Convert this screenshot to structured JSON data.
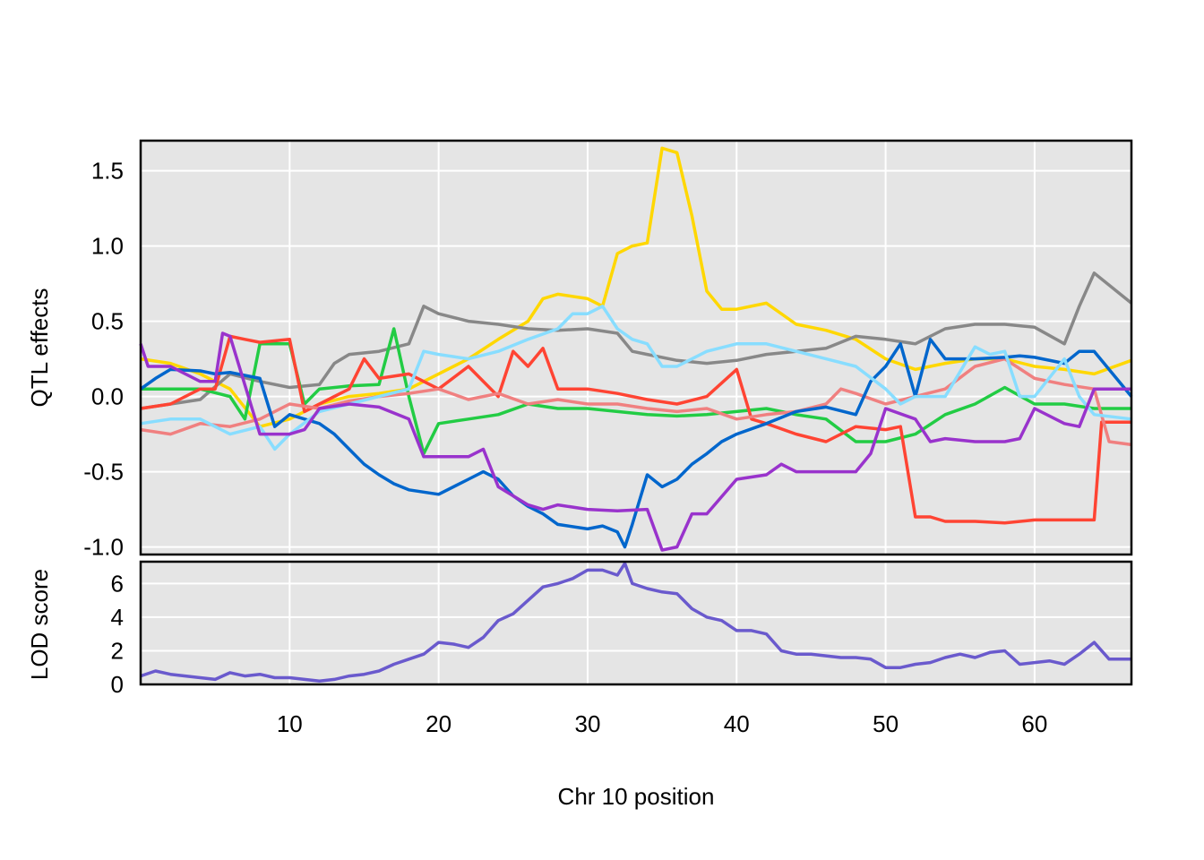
{
  "chart_data": [
    {
      "type": "line",
      "panel": "effects",
      "title": "",
      "xlabel": "",
      "ylabel": "QTL effects",
      "xlim": [
        0,
        66.5
      ],
      "ylim": [
        -1.05,
        1.7
      ],
      "xticks": [
        10,
        20,
        30,
        40,
        50,
        60
      ],
      "yticks": [
        -1.0,
        -0.5,
        0.0,
        0.5,
        1.0,
        1.5
      ],
      "ytick_labels": [
        "-1.0",
        "-0.5",
        "0.0",
        "0.5",
        "1.0",
        "1.5"
      ],
      "grid": true,
      "background": "#e5e5e5",
      "series": [
        {
          "color": "#ffd700",
          "x": [
            0,
            2,
            4,
            6,
            8,
            10,
            12,
            14,
            16,
            18,
            20,
            22,
            24,
            26,
            27,
            28,
            30,
            31,
            32,
            33,
            34,
            35,
            36,
            37,
            38,
            39,
            40,
            42,
            44,
            46,
            48,
            50,
            52,
            54,
            56,
            58,
            60,
            62,
            64,
            66.5
          ],
          "y": [
            0.25,
            0.22,
            0.15,
            0.05,
            -0.2,
            -0.15,
            -0.05,
            0.0,
            0.02,
            0.05,
            0.15,
            0.25,
            0.38,
            0.5,
            0.65,
            0.68,
            0.65,
            0.6,
            0.95,
            1.0,
            1.02,
            1.65,
            1.62,
            1.2,
            0.7,
            0.58,
            0.58,
            0.62,
            0.48,
            0.44,
            0.38,
            0.25,
            0.18,
            0.22,
            0.25,
            0.25,
            0.2,
            0.18,
            0.15,
            0.24
          ]
        },
        {
          "color": "#888888",
          "x": [
            0,
            2,
            4,
            6,
            8,
            10,
            12,
            13,
            14,
            16,
            18,
            19,
            20,
            22,
            24,
            26,
            28,
            30,
            32,
            33,
            34,
            36,
            38,
            40,
            42,
            44,
            46,
            48,
            50,
            52,
            54,
            56,
            58,
            60,
            62,
            63,
            64,
            66.5
          ],
          "y": [
            -0.08,
            -0.05,
            -0.02,
            0.15,
            0.1,
            0.06,
            0.08,
            0.22,
            0.28,
            0.3,
            0.35,
            0.6,
            0.55,
            0.5,
            0.48,
            0.45,
            0.44,
            0.45,
            0.42,
            0.3,
            0.28,
            0.24,
            0.22,
            0.24,
            0.28,
            0.3,
            0.32,
            0.4,
            0.38,
            0.35,
            0.45,
            0.48,
            0.48,
            0.46,
            0.35,
            0.6,
            0.82,
            0.62
          ]
        },
        {
          "color": "#22cc44",
          "x": [
            0,
            2,
            4,
            6,
            7,
            8,
            10,
            11,
            12,
            14,
            16,
            17,
            18,
            19,
            20,
            22,
            24,
            26,
            28,
            30,
            32,
            34,
            36,
            38,
            40,
            42,
            44,
            46,
            48,
            50,
            52,
            54,
            56,
            58,
            60,
            62,
            64,
            66.5
          ],
          "y": [
            0.05,
            0.05,
            0.05,
            0.0,
            -0.15,
            0.35,
            0.35,
            -0.05,
            0.05,
            0.07,
            0.08,
            0.45,
            0.0,
            -0.38,
            -0.18,
            -0.15,
            -0.12,
            -0.05,
            -0.08,
            -0.08,
            -0.1,
            -0.12,
            -0.13,
            -0.12,
            -0.1,
            -0.08,
            -0.12,
            -0.15,
            -0.3,
            -0.3,
            -0.25,
            -0.12,
            -0.05,
            0.06,
            -0.05,
            -0.05,
            -0.08,
            -0.08
          ]
        },
        {
          "color": "#ff4433",
          "x": [
            0,
            2,
            4,
            5,
            6,
            7,
            8,
            10,
            11,
            12,
            14,
            15,
            16,
            18,
            20,
            22,
            24,
            25,
            26,
            27,
            28,
            30,
            32,
            34,
            36,
            38,
            40,
            41,
            42,
            44,
            46,
            48,
            50,
            51,
            52,
            53,
            54,
            56,
            58,
            60,
            62,
            64,
            64.5,
            66.5
          ],
          "y": [
            -0.08,
            -0.05,
            0.05,
            0.05,
            0.4,
            0.38,
            0.36,
            0.38,
            -0.1,
            -0.05,
            0.05,
            0.25,
            0.12,
            0.15,
            0.05,
            0.2,
            0.0,
            0.3,
            0.2,
            0.32,
            0.05,
            0.05,
            0.02,
            -0.02,
            -0.05,
            0.0,
            0.18,
            -0.15,
            -0.18,
            -0.25,
            -0.3,
            -0.2,
            -0.22,
            -0.2,
            -0.8,
            -0.8,
            -0.83,
            -0.83,
            -0.84,
            -0.82,
            -0.82,
            -0.82,
            -0.17,
            -0.17
          ]
        },
        {
          "color": "#f08080",
          "x": [
            0,
            2,
            4,
            6,
            8,
            10,
            12,
            14,
            16,
            18,
            20,
            22,
            24,
            26,
            28,
            30,
            32,
            34,
            36,
            38,
            40,
            42,
            44,
            46,
            47,
            48,
            50,
            52,
            54,
            56,
            58,
            60,
            62,
            64,
            65,
            66.5
          ],
          "y": [
            -0.22,
            -0.25,
            -0.18,
            -0.2,
            -0.15,
            -0.05,
            -0.08,
            -0.03,
            0.0,
            0.02,
            0.05,
            -0.02,
            0.02,
            -0.05,
            -0.02,
            -0.05,
            -0.05,
            -0.08,
            -0.1,
            -0.08,
            -0.15,
            -0.12,
            -0.1,
            -0.05,
            0.05,
            0.02,
            -0.05,
            0.0,
            0.05,
            0.2,
            0.25,
            0.12,
            0.08,
            0.05,
            -0.3,
            -0.32
          ]
        },
        {
          "color": "#0066cc",
          "x": [
            0,
            1,
            2,
            4,
            5,
            6,
            8,
            9,
            10,
            12,
            13,
            14,
            15,
            16,
            17,
            18,
            20,
            22,
            23,
            24,
            25,
            26,
            27,
            28,
            30,
            31,
            32,
            32.5,
            33,
            34,
            35,
            36,
            37,
            38,
            39,
            40,
            42,
            44,
            46,
            48,
            49,
            50,
            51,
            52,
            53,
            54,
            56,
            58,
            59,
            60,
            62,
            63,
            64,
            66.5
          ],
          "y": [
            0.05,
            0.12,
            0.18,
            0.17,
            0.15,
            0.16,
            0.12,
            -0.2,
            -0.12,
            -0.18,
            -0.25,
            -0.35,
            -0.45,
            -0.52,
            -0.58,
            -0.62,
            -0.65,
            -0.55,
            -0.5,
            -0.55,
            -0.66,
            -0.73,
            -0.78,
            -0.85,
            -0.88,
            -0.86,
            -0.9,
            -1.0,
            -0.85,
            -0.52,
            -0.6,
            -0.55,
            -0.45,
            -0.38,
            -0.3,
            -0.25,
            -0.18,
            -0.1,
            -0.07,
            -0.12,
            0.1,
            0.2,
            0.35,
            0.0,
            0.38,
            0.25,
            0.25,
            0.26,
            0.27,
            0.26,
            0.22,
            0.3,
            0.3,
            0.0
          ]
        },
        {
          "color": "#88ddff",
          "x": [
            0,
            2,
            4,
            6,
            8,
            9,
            10,
            12,
            14,
            16,
            18,
            19,
            20,
            22,
            24,
            26,
            28,
            29,
            30,
            31,
            32,
            33,
            34,
            35,
            36,
            38,
            40,
            42,
            44,
            46,
            48,
            50,
            51,
            52,
            54,
            56,
            57,
            58,
            59,
            60,
            62,
            63,
            64,
            66.5
          ],
          "y": [
            -0.18,
            -0.15,
            -0.15,
            -0.25,
            -0.2,
            -0.35,
            -0.25,
            -0.1,
            -0.05,
            0.0,
            0.05,
            0.3,
            0.28,
            0.25,
            0.3,
            0.38,
            0.45,
            0.55,
            0.55,
            0.6,
            0.45,
            0.38,
            0.35,
            0.2,
            0.2,
            0.3,
            0.35,
            0.35,
            0.3,
            0.25,
            0.2,
            0.05,
            -0.05,
            0.0,
            0.0,
            0.33,
            0.28,
            0.3,
            0.0,
            0.0,
            0.25,
            0.0,
            -0.12,
            -0.15
          ]
        },
        {
          "color": "#9933cc",
          "x": [
            0,
            0.5,
            2,
            4,
            5,
            5.5,
            6,
            8,
            9,
            10,
            11,
            12,
            14,
            16,
            18,
            19,
            20,
            22,
            23,
            24,
            26,
            27,
            28,
            30,
            32,
            34,
            35,
            36,
            37,
            38,
            40,
            42,
            43,
            44,
            46,
            48,
            49,
            50,
            52,
            53,
            54,
            56,
            58,
            59,
            60,
            62,
            63,
            64,
            66.5
          ],
          "y": [
            0.35,
            0.2,
            0.2,
            0.1,
            0.1,
            0.42,
            0.4,
            -0.25,
            -0.25,
            -0.25,
            -0.22,
            -0.08,
            -0.05,
            -0.07,
            -0.15,
            -0.4,
            -0.4,
            -0.4,
            -0.35,
            -0.6,
            -0.72,
            -0.75,
            -0.72,
            -0.75,
            -0.76,
            -0.75,
            -1.02,
            -1.0,
            -0.78,
            -0.78,
            -0.55,
            -0.52,
            -0.45,
            -0.5,
            -0.5,
            -0.5,
            -0.38,
            -0.08,
            -0.15,
            -0.3,
            -0.28,
            -0.3,
            -0.3,
            -0.28,
            -0.08,
            -0.18,
            -0.2,
            0.05,
            0.05
          ]
        }
      ]
    },
    {
      "type": "line",
      "panel": "lod",
      "title": "",
      "xlabel": "Chr 10 position",
      "ylabel": "LOD score",
      "xlim": [
        0,
        66.5
      ],
      "ylim": [
        0,
        7.3
      ],
      "xticks": [
        10,
        20,
        30,
        40,
        50,
        60
      ],
      "yticks": [
        0,
        2,
        4,
        6
      ],
      "grid": true,
      "background": "#e5e5e5",
      "series": [
        {
          "color": "#6a5acd",
          "x": [
            0,
            1,
            2,
            3,
            4,
            5,
            6,
            7,
            8,
            9,
            10,
            11,
            12,
            13,
            14,
            15,
            16,
            17,
            18,
            19,
            20,
            21,
            22,
            23,
            24,
            25,
            26,
            27,
            28,
            29,
            30,
            31,
            32,
            32.5,
            33,
            34,
            35,
            36,
            37,
            38,
            39,
            40,
            41,
            42,
            43,
            44,
            45,
            46,
            47,
            48,
            49,
            50,
            51,
            52,
            53,
            54,
            55,
            56,
            57,
            58,
            59,
            60,
            61,
            62,
            63,
            64,
            65,
            66.5
          ],
          "y": [
            0.5,
            0.8,
            0.6,
            0.5,
            0.4,
            0.3,
            0.7,
            0.5,
            0.6,
            0.4,
            0.4,
            0.3,
            0.2,
            0.3,
            0.5,
            0.6,
            0.8,
            1.2,
            1.5,
            1.8,
            2.5,
            2.4,
            2.2,
            2.8,
            3.8,
            4.2,
            5.0,
            5.8,
            6.0,
            6.3,
            6.8,
            6.8,
            6.5,
            7.2,
            6.0,
            5.7,
            5.5,
            5.4,
            4.5,
            4.0,
            3.8,
            3.2,
            3.2,
            3.0,
            2.0,
            1.8,
            1.8,
            1.7,
            1.6,
            1.6,
            1.5,
            1.0,
            1.0,
            1.2,
            1.3,
            1.6,
            1.8,
            1.6,
            1.9,
            2.0,
            1.2,
            1.3,
            1.4,
            1.2,
            1.8,
            2.5,
            1.5,
            1.5
          ]
        }
      ]
    }
  ]
}
